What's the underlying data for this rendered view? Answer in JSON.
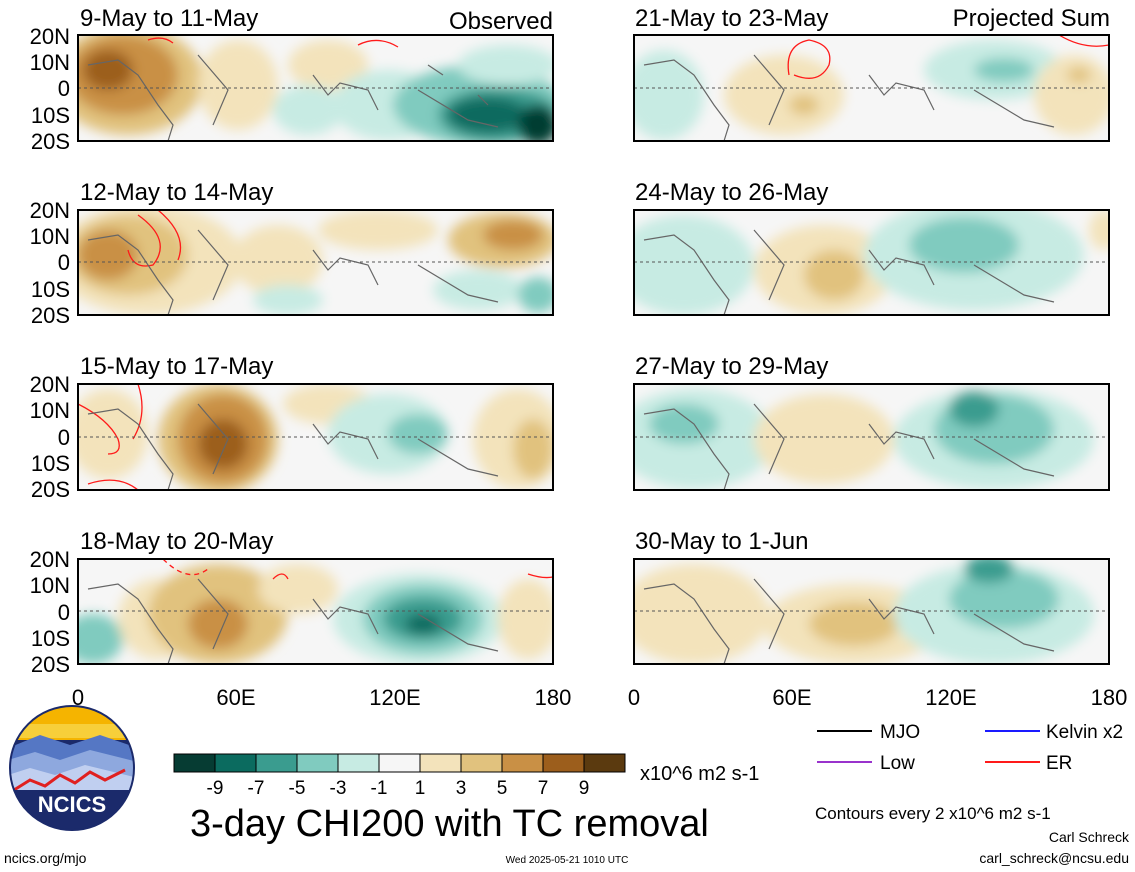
{
  "panels": [
    {
      "date_range": "9-May to 11-May",
      "tag": "Observed"
    },
    {
      "date_range": "12-May to 14-May",
      "tag": ""
    },
    {
      "date_range": "15-May to 17-May",
      "tag": ""
    },
    {
      "date_range": "18-May to 20-May",
      "tag": ""
    },
    {
      "date_range": "21-May to 23-May",
      "tag": "Projected Sum"
    },
    {
      "date_range": "24-May to 26-May",
      "tag": ""
    },
    {
      "date_range": "27-May to 29-May",
      "tag": ""
    },
    {
      "date_range": "30-May to 1-Jun",
      "tag": ""
    }
  ],
  "lat_labels": [
    "20N",
    "10N",
    "0",
    "10S",
    "20S"
  ],
  "lon_labels": [
    "0",
    "60E",
    "120E",
    "180"
  ],
  "colorbar": {
    "colors": [
      "#063c33",
      "#0b6b5f",
      "#3a9c8f",
      "#80cbbf",
      "#c7ebe3",
      "#f6f6f6",
      "#f3e3bb",
      "#e1c27e",
      "#c99045",
      "#9c5e1c",
      "#5b3a0f"
    ],
    "labels": [
      "-9",
      "-7",
      "-5",
      "-3",
      "-1",
      "1",
      "3",
      "5",
      "7",
      "9"
    ],
    "units": "x10^6 m2 s-1"
  },
  "legend": [
    {
      "label": "MJO",
      "color": "#000000"
    },
    {
      "label": "Kelvin x2",
      "color": "#1a1aff"
    },
    {
      "label": "Low",
      "color": "#9933cc"
    },
    {
      "label": "ER",
      "color": "#ff1a1a"
    }
  ],
  "main_title": "3-day CHI200 with TC removal",
  "contour_note": "Contours every 2 x10^6 m2 s-1",
  "author": "Carl Schreck",
  "email": "carl_schreck@ncsu.edu",
  "website": "ncics.org/mjo",
  "timestamp": "Wed 2025-05-21 1010 UTC",
  "logo_text": "NCICS"
}
